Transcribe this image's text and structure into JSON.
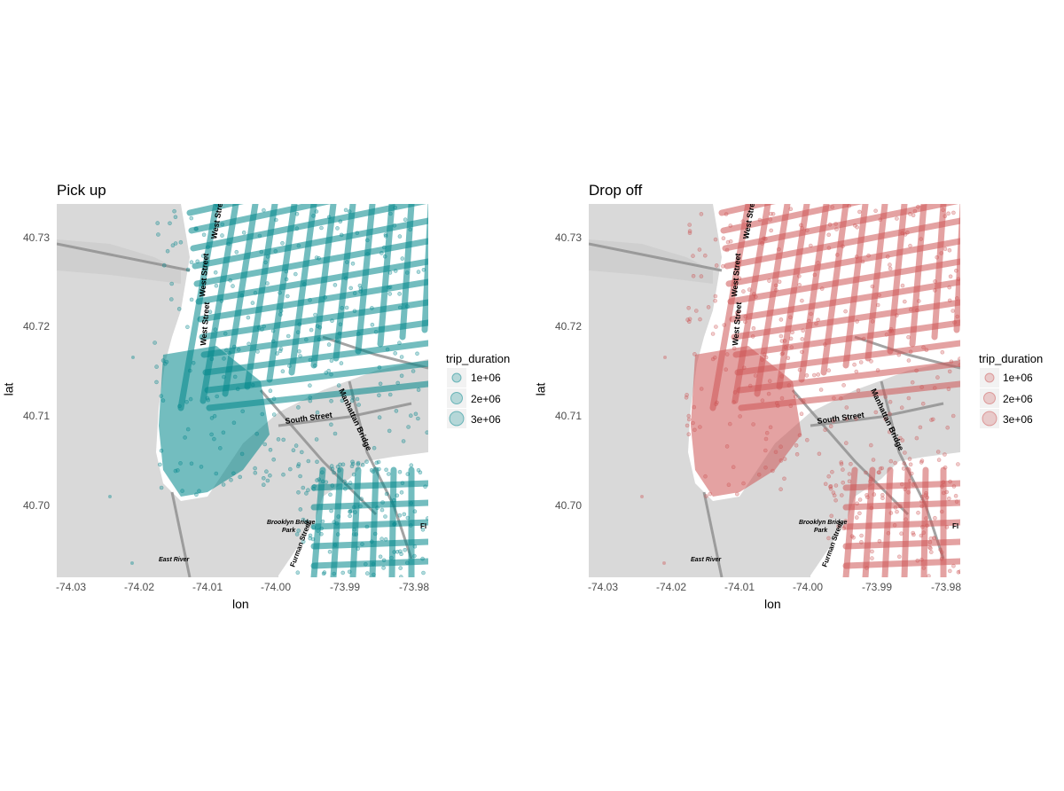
{
  "panels": [
    {
      "title": "Pick up",
      "xlabel": "lon",
      "ylabel": "lat",
      "point_color": "#00868b",
      "legend": {
        "title": "trip_duration",
        "entries": [
          "1e+06",
          "2e+06",
          "3e+06"
        ],
        "values": [
          1000000,
          2000000,
          3000000
        ]
      },
      "x_ticks": [
        "-74.03",
        "-74.02",
        "-74.01",
        "-74.00",
        "-73.99",
        "-73.98"
      ],
      "y_ticks": [
        "40.73",
        "40.72",
        "40.71",
        "40.70"
      ]
    },
    {
      "title": "Drop off",
      "xlabel": "lon",
      "ylabel": "lat",
      "point_color": "#cd5555",
      "legend": {
        "title": "trip_duration",
        "entries": [
          "1e+06",
          "2e+06",
          "3e+06"
        ],
        "values": [
          1000000,
          2000000,
          3000000
        ]
      },
      "x_ticks": [
        "-74.03",
        "-74.02",
        "-74.01",
        "-74.00",
        "-73.99",
        "-73.98"
      ],
      "y_ticks": [
        "40.73",
        "40.72",
        "40.71",
        "40.70"
      ]
    }
  ],
  "map": {
    "land_color": "#ffffff",
    "water_color": "#d9d9d9",
    "road_color": "#8c8c8c",
    "xlim": [
      -74.033,
      -73.979
    ],
    "ylim": [
      40.6921,
      40.7339
    ],
    "labels": {
      "west_street_1": "West Street",
      "west_street_2": "West Street",
      "west_street_3": "West Street",
      "south_street": "South Street",
      "manhattan_bridge": "Manhattan Bridge",
      "brooklyn_bridge_park": "Brooklyn Bridge",
      "brooklyn_bridge_park_2": "Park",
      "furman_street": "Furman Street",
      "east_river": "East River",
      "flatbush": "Fl"
    }
  }
}
